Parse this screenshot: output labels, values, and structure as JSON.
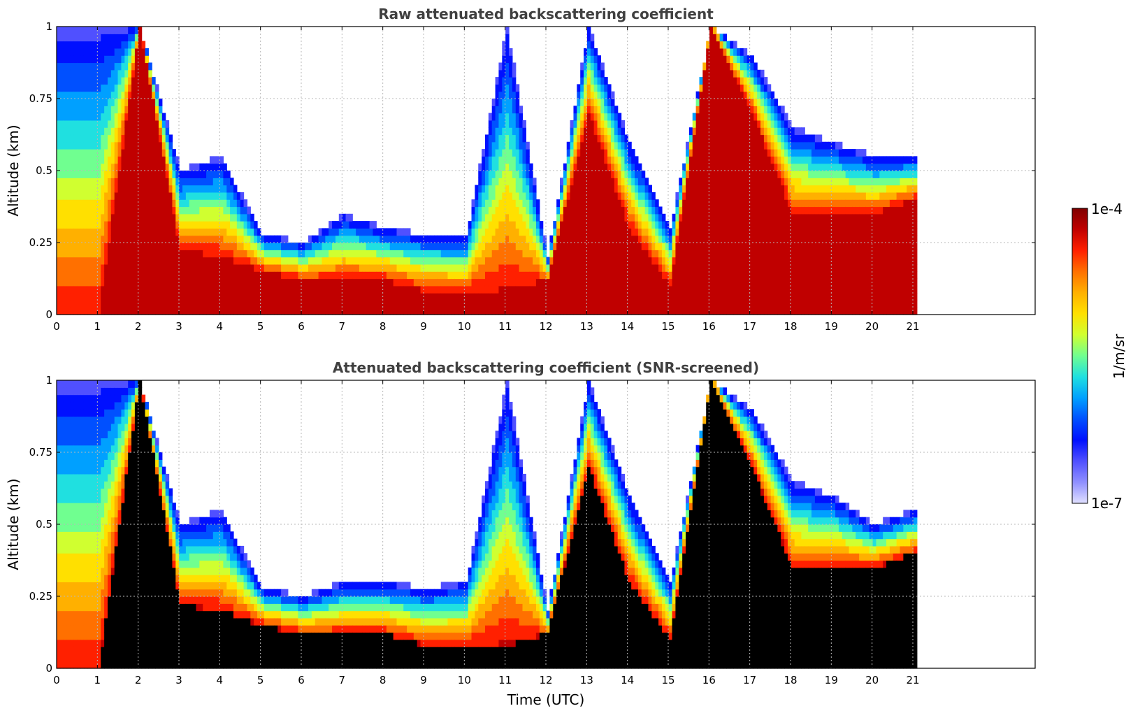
{
  "chart_data": [
    {
      "type": "heatmap",
      "title": "Raw attenuated backscattering coefficient",
      "ylabel": "Altitude (km)",
      "xlabel": "",
      "xlim": [
        0,
        24
      ],
      "ylim": [
        0,
        1
      ],
      "x_ticks": [
        "0",
        "1",
        "2",
        "3",
        "4",
        "5",
        "6",
        "7",
        "8",
        "9",
        "10",
        "11",
        "12",
        "13",
        "14",
        "15",
        "16",
        "17",
        "18",
        "19",
        "20",
        "21"
      ],
      "y_ticks": [
        "0",
        "0.25",
        "0.5",
        "0.75",
        "1"
      ],
      "grid": true,
      "data_end_time": 21.1,
      "profile_top_km": [
        1,
        1,
        1,
        0.5,
        0.55,
        0.28,
        0.25,
        0.35,
        0.3,
        0.28,
        0.27,
        1,
        0.2,
        1,
        0.6,
        0.3,
        1,
        0.9,
        0.65,
        0.6,
        0.55,
        0.55
      ],
      "layer_top_km": [
        0,
        0,
        1,
        0.22,
        0.2,
        0.15,
        0.12,
        0.12,
        0.12,
        0.08,
        0.08,
        0.08,
        0.12,
        0.7,
        0.3,
        0.1,
        1,
        0.7,
        0.35,
        0.35,
        0.35,
        0.4
      ]
    },
    {
      "type": "heatmap",
      "title": "Attenuated backscattering coefficient (SNR-screened)",
      "ylabel": "Altitude (km)",
      "xlabel": "Time (UTC)",
      "xlim": [
        0,
        24
      ],
      "ylim": [
        0,
        1
      ],
      "x_ticks": [
        "0",
        "1",
        "2",
        "3",
        "4",
        "5",
        "6",
        "7",
        "8",
        "9",
        "10",
        "11",
        "12",
        "13",
        "14",
        "15",
        "16",
        "17",
        "18",
        "19",
        "20",
        "21"
      ],
      "y_ticks": [
        "0",
        "0.25",
        "0.5",
        "0.75",
        "1"
      ],
      "grid": true,
      "data_end_time": 21.1,
      "profile_top_km": [
        1,
        1,
        1,
        0.5,
        0.55,
        0.28,
        0.25,
        0.3,
        0.3,
        0.28,
        0.3,
        1,
        0.2,
        1,
        0.6,
        0.3,
        1,
        0.9,
        0.65,
        0.6,
        0.5,
        0.55
      ],
      "layer_top_km": [
        0,
        0,
        1,
        0.22,
        0.2,
        0.15,
        0.12,
        0.12,
        0.12,
        0.08,
        0.08,
        0.08,
        0.12,
        0.7,
        0.3,
        0.1,
        1,
        0.7,
        0.35,
        0.35,
        0.35,
        0.4
      ]
    }
  ],
  "colorbar": {
    "label": "1/m/sr",
    "max_label": "1e-4",
    "min_label": "1e-7",
    "colors": [
      "#7f0000",
      "#c00000",
      "#ff2000",
      "#ff7000",
      "#ffb000",
      "#ffe000",
      "#d0ff30",
      "#70ff90",
      "#20e0e0",
      "#00a0ff",
      "#0050ff",
      "#0010ff",
      "#5050ff",
      "#9090ff",
      "#e0e0ff"
    ]
  }
}
